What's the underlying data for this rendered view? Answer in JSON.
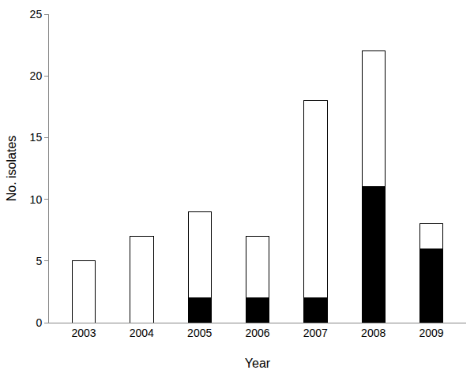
{
  "chart_data": {
    "type": "bar",
    "stacked": true,
    "x_label": "Year",
    "y_label": "No. isolates",
    "categories": [
      "2003",
      "2004",
      "2005",
      "2006",
      "2007",
      "2008",
      "2009"
    ],
    "series": [
      {
        "color": "#000000",
        "values": [
          0,
          0,
          2,
          2,
          2,
          11,
          6
        ]
      },
      {
        "color": "#ffffff",
        "values": [
          5,
          7,
          7,
          5,
          16,
          11,
          2
        ]
      }
    ],
    "ylim": [
      0,
      25
    ],
    "yticks": [
      0,
      5,
      10,
      15,
      20,
      25
    ],
    "grid": false
  }
}
